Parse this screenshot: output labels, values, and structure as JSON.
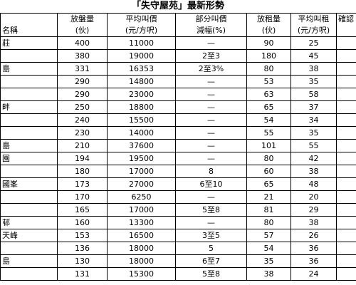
{
  "title": "「失守屋苑」最新形勢",
  "headers": {
    "name": "名稱",
    "col1": [
      "放盤量",
      "(伙)"
    ],
    "col2": [
      "平均叫價",
      "(元/方呎)"
    ],
    "col3": [
      "部分叫價",
      "減幅(%)"
    ],
    "col4": [
      "放租量",
      "(伙)"
    ],
    "col5": [
      "平均叫租",
      "(元/方呎)"
    ],
    "col6": [
      "確認",
      ""
    ]
  },
  "rows": [
    {
      "name": "莊",
      "listings": "400",
      "ask": "11000",
      "cut": "—",
      "rent_listings": "90",
      "rent": "25"
    },
    {
      "name": "",
      "listings": "380",
      "ask": "19000",
      "cut": "2至3",
      "rent_listings": "180",
      "rent": "45"
    },
    {
      "name": "島",
      "listings": "331",
      "ask": "16353",
      "cut": "2至3%",
      "rent_listings": "80",
      "rent": "38"
    },
    {
      "name": "",
      "listings": "290",
      "ask": "14800",
      "cut": "—",
      "rent_listings": "53",
      "rent": "35"
    },
    {
      "name": "",
      "listings": "290",
      "ask": "23000",
      "cut": "—",
      "rent_listings": "63",
      "rent": "58"
    },
    {
      "name": "畔",
      "listings": "250",
      "ask": "18800",
      "cut": "—",
      "rent_listings": "65",
      "rent": "37"
    },
    {
      "name": "",
      "listings": "240",
      "ask": "15500",
      "cut": "—",
      "rent_listings": "54",
      "rent": "34"
    },
    {
      "name": "",
      "listings": "230",
      "ask": "14000",
      "cut": "—",
      "rent_listings": "55",
      "rent": "35"
    },
    {
      "name": "島",
      "listings": "210",
      "ask": "37600",
      "cut": "—",
      "rent_listings": "101",
      "rent": "55"
    },
    {
      "name": "園",
      "listings": "194",
      "ask": "19500",
      "cut": "—",
      "rent_listings": "80",
      "rent": "42"
    },
    {
      "name": "",
      "listings": "180",
      "ask": "17000",
      "cut": "8",
      "rent_listings": "60",
      "rent": "38"
    },
    {
      "name": "國峯",
      "listings": "173",
      "ask": "27000",
      "cut": "6至10",
      "rent_listings": "65",
      "rent": "48"
    },
    {
      "name": "",
      "listings": "170",
      "ask": "6250",
      "cut": "—",
      "rent_listings": "21",
      "rent": "20"
    },
    {
      "name": "",
      "listings": "165",
      "ask": "17000",
      "cut": "5至8",
      "rent_listings": "81",
      "rent": "29"
    },
    {
      "name": "邨",
      "listings": "160",
      "ask": "13300",
      "cut": "—",
      "rent_listings": "80",
      "rent": "38"
    },
    {
      "name": "天峰",
      "listings": "153",
      "ask": "16500",
      "cut": "3至5",
      "rent_listings": "57",
      "rent": "26"
    },
    {
      "name": "",
      "listings": "136",
      "ask": "18000",
      "cut": "5",
      "rent_listings": "54",
      "rent": "36"
    },
    {
      "name": "島",
      "listings": "130",
      "ask": "18000",
      "cut": "6至7",
      "rent_listings": "35",
      "rent": "36"
    },
    {
      "name": "",
      "listings": "131",
      "ask": "15300",
      "cut": "5至8",
      "rent_listings": "38",
      "rent": "24"
    }
  ]
}
